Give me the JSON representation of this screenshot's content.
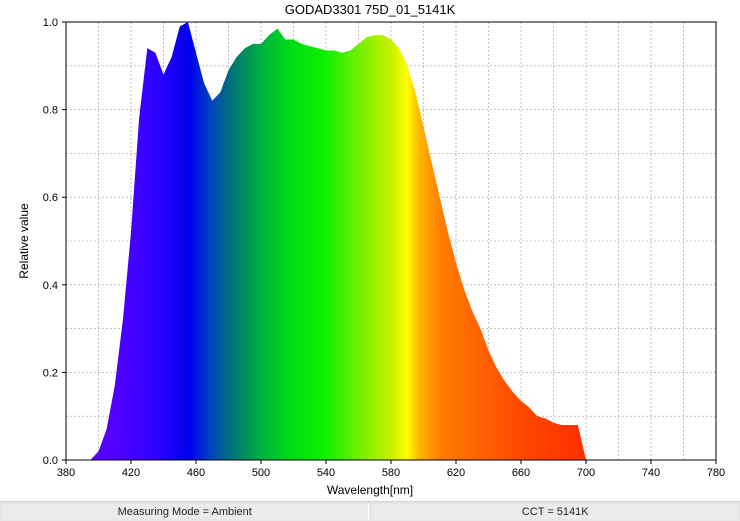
{
  "chart_data": {
    "type": "area",
    "title": "GODAD3301 75D_01_5141K",
    "xlabel": "Wavelength[nm]",
    "ylabel": "Relative value",
    "xlim": [
      380,
      780
    ],
    "ylim": [
      0,
      1.0
    ],
    "xticks": [
      "380",
      "420",
      "460",
      "500",
      "540",
      "580",
      "620",
      "660",
      "700",
      "740",
      "780"
    ],
    "yticks": [
      "0.0",
      "0.2",
      "0.4",
      "0.6",
      "0.8",
      "1.0"
    ],
    "grid": true,
    "fill": "visible spectrum gradient",
    "x": [
      380,
      395,
      400,
      405,
      410,
      415,
      420,
      425,
      430,
      435,
      440,
      445,
      450,
      455,
      460,
      465,
      470,
      475,
      480,
      485,
      490,
      495,
      500,
      505,
      510,
      515,
      520,
      525,
      530,
      535,
      540,
      545,
      550,
      555,
      560,
      565,
      570,
      575,
      580,
      585,
      590,
      595,
      600,
      605,
      610,
      615,
      620,
      625,
      630,
      635,
      640,
      645,
      650,
      655,
      660,
      665,
      670,
      675,
      680,
      685,
      690,
      695,
      700,
      705,
      710,
      715,
      720,
      725,
      730,
      735,
      740,
      745,
      750,
      755,
      760,
      765,
      770,
      775,
      780
    ],
    "y": [
      0.0,
      0.0,
      0.02,
      0.07,
      0.17,
      0.32,
      0.52,
      0.78,
      0.94,
      0.93,
      0.88,
      0.92,
      0.99,
      1.0,
      0.93,
      0.86,
      0.82,
      0.84,
      0.89,
      0.92,
      0.94,
      0.95,
      0.95,
      0.97,
      0.985,
      0.96,
      0.96,
      0.95,
      0.945,
      0.94,
      0.935,
      0.935,
      0.93,
      0.935,
      0.95,
      0.965,
      0.97,
      0.97,
      0.96,
      0.94,
      0.9,
      0.84,
      0.76,
      0.68,
      0.6,
      0.52,
      0.45,
      0.39,
      0.34,
      0.3,
      0.25,
      0.21,
      0.18,
      0.155,
      0.135,
      0.12,
      0.1,
      0.095,
      0.085,
      0.08,
      0.08,
      0.08,
      0.0,
      0,
      0,
      0,
      0,
      0,
      0,
      0,
      0,
      0,
      0,
      0,
      0,
      0,
      0,
      0,
      0
    ]
  },
  "status_bar": {
    "measuring_mode": "Measuring Mode = Ambient",
    "cct": "CCT = 5141K"
  }
}
